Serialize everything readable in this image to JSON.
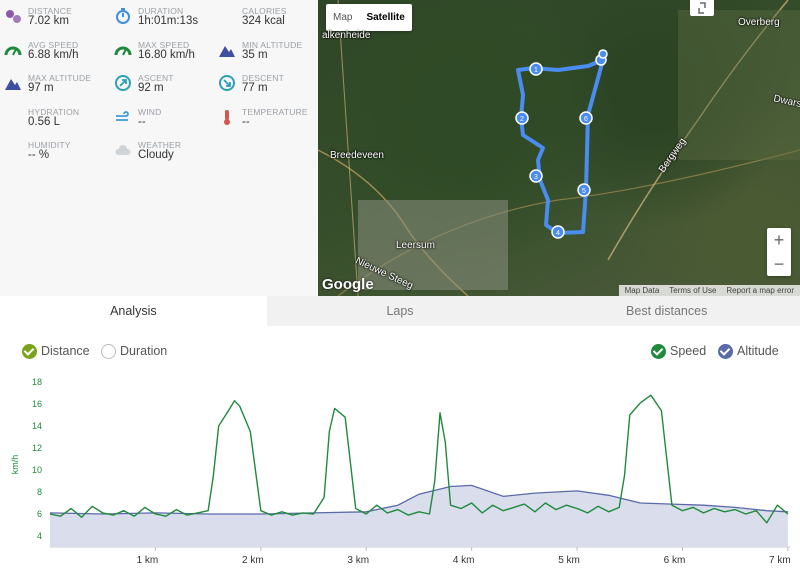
{
  "stats": [
    {
      "label": "DISTANCE",
      "value": "7.02 km",
      "icon": "distance-icon",
      "color": "#8e5aa8"
    },
    {
      "label": "DURATION",
      "value": "1h:01m:13s",
      "icon": "stopwatch-icon",
      "color": "#3d8ee0"
    },
    {
      "label": "CALORIES",
      "value": "324 kcal",
      "icon": "flame-icon",
      "color": "#e4572e"
    },
    {
      "label": "AVG SPEED",
      "value": "6.88 km/h",
      "icon": "speedometer-icon",
      "color": "#1f8a3c"
    },
    {
      "label": "MAX SPEED",
      "value": "16.80 km/h",
      "icon": "speedometer-icon",
      "color": "#1f8a3c"
    },
    {
      "label": "MIN ALTITUDE",
      "value": "35 m",
      "icon": "mountain-icon",
      "color": "#3f4fa0"
    },
    {
      "label": "MAX ALTITUDE",
      "value": "97 m",
      "icon": "mountain-icon",
      "color": "#3f4fa0"
    },
    {
      "label": "ASCENT",
      "value": "92 m",
      "icon": "ascent-icon",
      "color": "#2aa0b8"
    },
    {
      "label": "DESCENT",
      "value": "77 m",
      "icon": "descent-icon",
      "color": "#2aa0b8"
    },
    {
      "label": "HYDRATION",
      "value": "0.56 L",
      "icon": "water-drops-icon",
      "color": "#7aaee0"
    },
    {
      "label": "WIND",
      "value": "--",
      "icon": "wind-icon",
      "color": "#3d9ad6"
    },
    {
      "label": "TEMPERATURE",
      "value": "--",
      "icon": "thermometer-icon",
      "color": "#d9534f"
    },
    {
      "label": "HUMIDITY",
      "value": "-- %",
      "icon": "humidity-icon",
      "color": "#7aaee0"
    },
    {
      "label": "WEATHER",
      "value": "Cloudy",
      "icon": "cloud-icon",
      "color": "#cfd4d9"
    }
  ],
  "map": {
    "type_buttons": [
      "Map",
      "Satellite"
    ],
    "selected_type": "Satellite",
    "labels": [
      "alkenheide",
      "Overberg",
      "Dwarsweg",
      "Breedeveen",
      "Bergweg",
      "Leersum",
      "Nieuwe Steeg"
    ],
    "zoom_in": "+",
    "zoom_out": "−",
    "logo": "Google",
    "attribution": [
      "Map Data",
      "Terms of Use",
      "Report a map error"
    ],
    "route_markers": [
      "1",
      "2",
      "3",
      "4",
      "5",
      "6"
    ],
    "route_color": "#4a8cf0"
  },
  "tabs": [
    "Analysis",
    "Laps",
    "Best distances"
  ],
  "active_tab": "Analysis",
  "toggles": {
    "x_axis": [
      {
        "label": "Distance",
        "checked": true
      },
      {
        "label": "Duration",
        "checked": false
      }
    ],
    "series": [
      {
        "label": "Speed",
        "checked": true
      },
      {
        "label": "Altitude",
        "checked": true
      }
    ]
  },
  "chart_data": {
    "type": "line",
    "ylabel": "km/h",
    "xlabel": "",
    "ylim": [
      3,
      18
    ],
    "xlim": [
      0,
      7.02
    ],
    "y_ticks": [
      "4",
      "6",
      "8",
      "10",
      "12",
      "14",
      "16",
      "18"
    ],
    "x_ticks": [
      "1 km",
      "2 km",
      "3 km",
      "4 km",
      "5 km",
      "6 km",
      "7 km"
    ],
    "series": [
      {
        "name": "Speed",
        "color": "#1f8a3c",
        "x": [
          0,
          0.1,
          0.2,
          0.3,
          0.4,
          0.5,
          0.6,
          0.7,
          0.8,
          0.9,
          1.0,
          1.1,
          1.2,
          1.3,
          1.4,
          1.5,
          1.55,
          1.6,
          1.7,
          1.75,
          1.8,
          1.9,
          2.0,
          2.1,
          2.2,
          2.3,
          2.4,
          2.5,
          2.6,
          2.65,
          2.7,
          2.8,
          2.9,
          3.0,
          3.1,
          3.2,
          3.3,
          3.4,
          3.5,
          3.6,
          3.65,
          3.7,
          3.75,
          3.8,
          3.9,
          4.0,
          4.1,
          4.2,
          4.3,
          4.4,
          4.5,
          4.6,
          4.7,
          4.8,
          4.9,
          5.0,
          5.1,
          5.2,
          5.3,
          5.4,
          5.45,
          5.5,
          5.6,
          5.7,
          5.8,
          5.9,
          6.0,
          6.1,
          6.2,
          6.3,
          6.4,
          6.5,
          6.6,
          6.7,
          6.8,
          6.9,
          7.0
        ],
        "values": [
          6.0,
          5.8,
          6.5,
          5.7,
          6.7,
          6.1,
          5.9,
          6.3,
          5.8,
          6.6,
          6.0,
          5.8,
          6.4,
          5.9,
          6.1,
          6.3,
          9.5,
          14.0,
          15.5,
          16.3,
          15.8,
          13.5,
          6.3,
          5.9,
          6.2,
          5.9,
          6.1,
          6.0,
          7.5,
          13.5,
          15.6,
          14.8,
          6.5,
          6.0,
          6.8,
          6.1,
          6.4,
          5.9,
          6.2,
          6.0,
          9.0,
          15.2,
          12.5,
          6.8,
          6.5,
          7.0,
          6.1,
          6.8,
          6.3,
          6.6,
          6.9,
          6.2,
          7.0,
          6.4,
          6.8,
          6.5,
          6.1,
          6.7,
          6.2,
          6.6,
          9.5,
          15.0,
          16.1,
          16.8,
          15.4,
          6.8,
          6.3,
          6.6,
          6.1,
          6.5,
          6.2,
          6.4,
          6.0,
          6.3,
          5.2,
          6.8,
          6.0
        ]
      },
      {
        "name": "Altitude",
        "color": "#5a6aa8",
        "fill": "#d9ddec",
        "x": [
          0,
          0.5,
          1.0,
          1.5,
          2.0,
          2.5,
          3.0,
          3.3,
          3.5,
          3.8,
          4.0,
          4.3,
          4.6,
          5.0,
          5.3,
          5.6,
          5.9,
          6.2,
          6.5,
          6.8,
          7.0
        ],
        "values": [
          6.1,
          6.0,
          6.1,
          6.0,
          6.0,
          6.1,
          6.2,
          6.8,
          7.8,
          8.5,
          8.6,
          7.6,
          7.9,
          8.1,
          7.7,
          7.0,
          6.9,
          6.8,
          6.6,
          6.3,
          6.2
        ]
      }
    ]
  }
}
